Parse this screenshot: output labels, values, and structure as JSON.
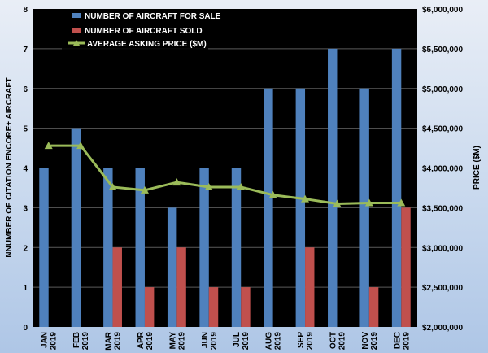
{
  "chart_data": {
    "type": "bar",
    "categories": [
      [
        "JAN",
        "2019"
      ],
      [
        "FEB",
        "2019"
      ],
      [
        "MAR",
        "2019"
      ],
      [
        "APR",
        "2019"
      ],
      [
        "MAY",
        "2019"
      ],
      [
        "JUN",
        "2019"
      ],
      [
        "JUL",
        "2019"
      ],
      [
        "AUG",
        "2019"
      ],
      [
        "SEP",
        "2019"
      ],
      [
        "OCT",
        "2019"
      ],
      [
        "NOV",
        "2019"
      ],
      [
        "DEC",
        "2019"
      ]
    ],
    "series": [
      {
        "name": "NUMBER OF AIRCRAFT FOR SALE",
        "type": "bar",
        "axis": "left",
        "color": "#4f81bd",
        "values": [
          4,
          5,
          4,
          4,
          3,
          4,
          4,
          6,
          6,
          7,
          6,
          7
        ]
      },
      {
        "name": "NUMBER OF AIRCRAFT SOLD",
        "type": "bar",
        "axis": "left",
        "color": "#c0504d",
        "values": [
          0,
          0,
          2,
          1,
          2,
          1,
          1,
          0,
          2,
          0,
          1,
          3
        ]
      },
      {
        "name": "AVERAGE ASKING PRICE ($M)",
        "type": "line",
        "axis": "right",
        "color": "#9bbb59",
        "values": [
          4280000,
          4280000,
          3760000,
          3720000,
          3820000,
          3760000,
          3760000,
          3660000,
          3610000,
          3550000,
          3560000,
          3560000
        ]
      }
    ],
    "ylabel": "NNUMBER OF CITATION ENCORE+ AIRCRAFT",
    "y2label": "PRICE ($M)",
    "ylim": [
      0,
      8
    ],
    "yticks": [
      "0",
      "1",
      "2",
      "3",
      "4",
      "5",
      "6",
      "7",
      "8"
    ],
    "y2lim": [
      2000000,
      6000000
    ],
    "y2ticks": [
      "$2,000,000",
      "$2,500,000",
      "$3,000,000",
      "$3,500,000",
      "$4,000,000",
      "$4,500,000",
      "$5,000,000",
      "$5,500,000",
      "$6,000,000"
    ],
    "grid": true,
    "legend_position": "top-left",
    "plot_background": "#000000",
    "grid_color": "#5a5a5a"
  }
}
